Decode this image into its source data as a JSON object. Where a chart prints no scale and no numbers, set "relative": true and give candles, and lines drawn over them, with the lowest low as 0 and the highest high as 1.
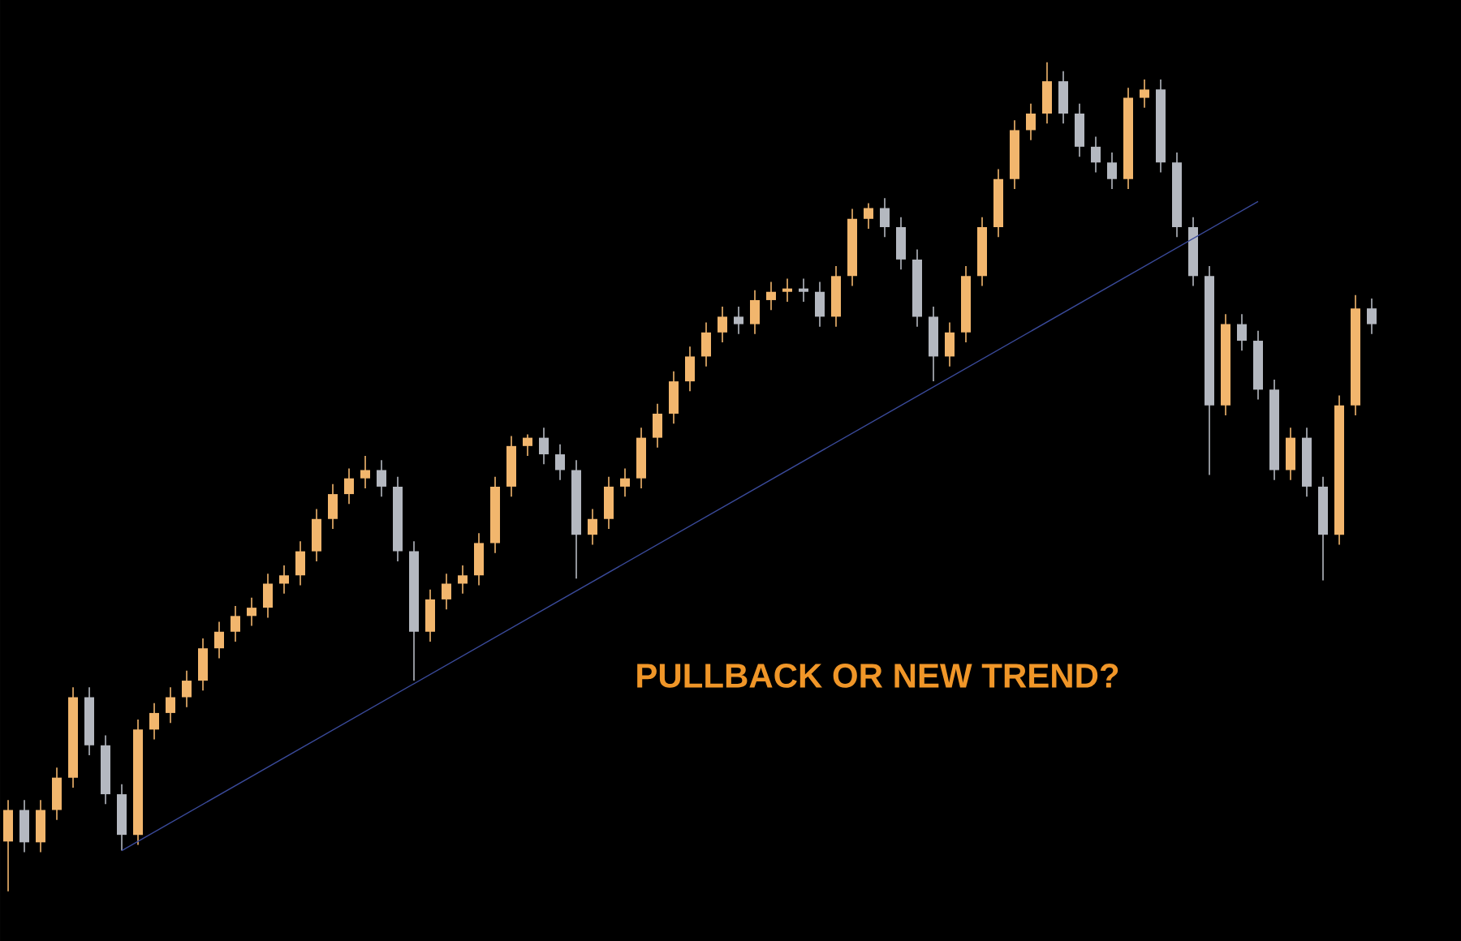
{
  "chart_data": {
    "type": "candlestick",
    "relative": true,
    "categories": [
      null,
      null,
      null,
      null,
      null,
      null,
      null,
      null,
      null,
      null,
      null,
      null,
      null,
      null,
      null,
      null,
      null,
      null,
      null,
      null,
      null,
      null,
      null,
      null,
      null,
      null,
      null,
      null,
      null,
      null,
      null,
      null,
      null,
      null,
      null,
      null,
      null,
      null,
      null,
      null,
      null,
      null,
      null,
      null,
      null,
      null,
      null,
      null,
      null,
      null,
      null,
      null,
      null,
      null,
      null,
      null,
      null,
      null,
      null,
      null,
      null,
      null,
      null,
      null,
      null,
      null,
      null,
      null,
      null,
      null,
      null,
      null,
      null,
      null,
      null,
      null,
      null,
      null,
      null,
      null,
      null,
      null,
      null,
      null,
      null
    ],
    "ohlc": [
      [
        0.06,
        0.11,
        0.0,
        0.098
      ],
      [
        0.098,
        0.11,
        0.047,
        0.059
      ],
      [
        0.059,
        0.11,
        0.047,
        0.098
      ],
      [
        0.098,
        0.149,
        0.086,
        0.137
      ],
      [
        0.137,
        0.246,
        0.125,
        0.234
      ],
      [
        0.234,
        0.246,
        0.164,
        0.176
      ],
      [
        0.176,
        0.188,
        0.105,
        0.117
      ],
      [
        0.117,
        0.129,
        0.049,
        0.068
      ],
      [
        0.068,
        0.207,
        0.056,
        0.195
      ],
      [
        0.195,
        0.227,
        0.183,
        0.215
      ],
      [
        0.215,
        0.246,
        0.203,
        0.234
      ],
      [
        0.234,
        0.266,
        0.222,
        0.254
      ],
      [
        0.254,
        0.305,
        0.242,
        0.293
      ],
      [
        0.293,
        0.325,
        0.281,
        0.313
      ],
      [
        0.313,
        0.344,
        0.301,
        0.332
      ],
      [
        0.332,
        0.354,
        0.32,
        0.342
      ],
      [
        0.342,
        0.383,
        0.33,
        0.371
      ],
      [
        0.371,
        0.393,
        0.359,
        0.381
      ],
      [
        0.381,
        0.422,
        0.369,
        0.41
      ],
      [
        0.41,
        0.461,
        0.398,
        0.449
      ],
      [
        0.449,
        0.491,
        0.437,
        0.479
      ],
      [
        0.479,
        0.51,
        0.467,
        0.498
      ],
      [
        0.498,
        0.525,
        0.486,
        0.508
      ],
      [
        0.508,
        0.52,
        0.476,
        0.488
      ],
      [
        0.488,
        0.5,
        0.398,
        0.41
      ],
      [
        0.41,
        0.422,
        0.254,
        0.313
      ],
      [
        0.313,
        0.364,
        0.301,
        0.352
      ],
      [
        0.352,
        0.383,
        0.34,
        0.371
      ],
      [
        0.371,
        0.393,
        0.359,
        0.381
      ],
      [
        0.381,
        0.432,
        0.369,
        0.42
      ],
      [
        0.42,
        0.5,
        0.408,
        0.488
      ],
      [
        0.488,
        0.549,
        0.476,
        0.537
      ],
      [
        0.537,
        0.551,
        0.525,
        0.547
      ],
      [
        0.547,
        0.559,
        0.515,
        0.527
      ],
      [
        0.527,
        0.539,
        0.496,
        0.508
      ],
      [
        0.508,
        0.52,
        0.377,
        0.43
      ],
      [
        0.43,
        0.461,
        0.418,
        0.449
      ],
      [
        0.449,
        0.5,
        0.437,
        0.488
      ],
      [
        0.488,
        0.51,
        0.476,
        0.498
      ],
      [
        0.498,
        0.559,
        0.486,
        0.547
      ],
      [
        0.547,
        0.588,
        0.535,
        0.576
      ],
      [
        0.576,
        0.627,
        0.564,
        0.615
      ],
      [
        0.615,
        0.657,
        0.603,
        0.645
      ],
      [
        0.645,
        0.686,
        0.633,
        0.674
      ],
      [
        0.674,
        0.705,
        0.662,
        0.693
      ],
      [
        0.693,
        0.705,
        0.672,
        0.684
      ],
      [
        0.684,
        0.725,
        0.672,
        0.713
      ],
      [
        0.713,
        0.735,
        0.701,
        0.723
      ],
      [
        0.723,
        0.739,
        0.711,
        0.727
      ],
      [
        0.727,
        0.739,
        0.711,
        0.723
      ],
      [
        0.723,
        0.735,
        0.681,
        0.693
      ],
      [
        0.693,
        0.754,
        0.681,
        0.742
      ],
      [
        0.742,
        0.823,
        0.73,
        0.811
      ],
      [
        0.811,
        0.83,
        0.799,
        0.824
      ],
      [
        0.824,
        0.836,
        0.789,
        0.801
      ],
      [
        0.801,
        0.813,
        0.75,
        0.762
      ],
      [
        0.762,
        0.774,
        0.681,
        0.693
      ],
      [
        0.693,
        0.705,
        0.615,
        0.645
      ],
      [
        0.645,
        0.686,
        0.633,
        0.674
      ],
      [
        0.674,
        0.754,
        0.662,
        0.742
      ],
      [
        0.742,
        0.813,
        0.73,
        0.801
      ],
      [
        0.801,
        0.871,
        0.789,
        0.859
      ],
      [
        0.859,
        0.93,
        0.847,
        0.918
      ],
      [
        0.918,
        0.95,
        0.906,
        0.938
      ],
      [
        0.938,
        1.0,
        0.926,
        0.977
      ],
      [
        0.977,
        0.989,
        0.926,
        0.938
      ],
      [
        0.938,
        0.95,
        0.886,
        0.898
      ],
      [
        0.898,
        0.91,
        0.867,
        0.879
      ],
      [
        0.879,
        0.891,
        0.847,
        0.859
      ],
      [
        0.859,
        0.969,
        0.847,
        0.957
      ],
      [
        0.957,
        0.979,
        0.945,
        0.967
      ],
      [
        0.967,
        0.979,
        0.867,
        0.879
      ],
      [
        0.879,
        0.891,
        0.789,
        0.801
      ],
      [
        0.801,
        0.813,
        0.73,
        0.742
      ],
      [
        0.742,
        0.754,
        0.502,
        0.586
      ],
      [
        0.586,
        0.696,
        0.574,
        0.684
      ],
      [
        0.684,
        0.696,
        0.652,
        0.664
      ],
      [
        0.664,
        0.676,
        0.593,
        0.605
      ],
      [
        0.605,
        0.617,
        0.496,
        0.508
      ],
      [
        0.508,
        0.559,
        0.496,
        0.547
      ],
      [
        0.547,
        0.559,
        0.476,
        0.488
      ],
      [
        0.488,
        0.5,
        0.375,
        0.43
      ],
      [
        0.43,
        0.598,
        0.418,
        0.586
      ],
      [
        0.586,
        0.719,
        0.574,
        0.703
      ],
      [
        0.703,
        0.715,
        0.672,
        0.684
      ]
    ],
    "colors": [
      "#f2b66d",
      "#b4b8c0",
      "#f2b66d",
      "#f2b66d",
      "#f2b66d",
      "#b4b8c0",
      "#b4b8c0",
      "#b4b8c0",
      "#f2b66d",
      "#f2b66d",
      "#f2b66d",
      "#f2b66d",
      "#f2b66d",
      "#f2b66d",
      "#f2b66d",
      "#f2b66d",
      "#f2b66d",
      "#f2b66d",
      "#f2b66d",
      "#f2b66d",
      "#f2b66d",
      "#f2b66d",
      "#f2b66d",
      "#b4b8c0",
      "#b4b8c0",
      "#b4b8c0",
      "#f2b66d",
      "#f2b66d",
      "#f2b66d",
      "#f2b66d",
      "#f2b66d",
      "#f2b66d",
      "#f2b66d",
      "#b4b8c0",
      "#b4b8c0",
      "#b4b8c0",
      "#f2b66d",
      "#f2b66d",
      "#f2b66d",
      "#f2b66d",
      "#f2b66d",
      "#f2b66d",
      "#f2b66d",
      "#f2b66d",
      "#f2b66d",
      "#b4b8c0",
      "#f2b66d",
      "#f2b66d",
      "#f2b66d",
      "#b4b8c0",
      "#b4b8c0",
      "#f2b66d",
      "#f2b66d",
      "#f2b66d",
      "#b4b8c0",
      "#b4b8c0",
      "#b4b8c0",
      "#b4b8c0",
      "#f2b66d",
      "#f2b66d",
      "#f2b66d",
      "#f2b66d",
      "#f2b66d",
      "#f2b66d",
      "#f2b66d",
      "#b4b8c0",
      "#b4b8c0",
      "#b4b8c0",
      "#b4b8c0",
      "#f2b66d",
      "#f2b66d",
      "#b4b8c0",
      "#b4b8c0",
      "#b4b8c0",
      "#b4b8c0",
      "#f2b66d",
      "#b4b8c0",
      "#b4b8c0",
      "#b4b8c0",
      "#f2b66d",
      "#b4b8c0",
      "#b4b8c0",
      "#f2b66d",
      "#f2b66d",
      "#b4b8c0"
    ],
    "series": [
      {
        "type": "line",
        "values": [
          null,
          null,
          null,
          null,
          null,
          null,
          null,
          0.049,
          null,
          null,
          null,
          null,
          null,
          null,
          null,
          null,
          null,
          null,
          null,
          null,
          null,
          null,
          null,
          null,
          null,
          null,
          null,
          null,
          null,
          null,
          null,
          null,
          null,
          null,
          null,
          null,
          null,
          null,
          null,
          null,
          null,
          null,
          null,
          null,
          null,
          null,
          null,
          null,
          null,
          null,
          null,
          null,
          null,
          null,
          null,
          null,
          null,
          null,
          null,
          null,
          null,
          null,
          null,
          null,
          null,
          null,
          null,
          null,
          null,
          null,
          null,
          null,
          null,
          null,
          null,
          null,
          null,
          0.832,
          null,
          null,
          null,
          null,
          null,
          null,
          null
        ],
        "color": "#3a4a9a"
      }
    ],
    "annotations": [
      "PULLBACK OR NEW TREND?"
    ]
  }
}
